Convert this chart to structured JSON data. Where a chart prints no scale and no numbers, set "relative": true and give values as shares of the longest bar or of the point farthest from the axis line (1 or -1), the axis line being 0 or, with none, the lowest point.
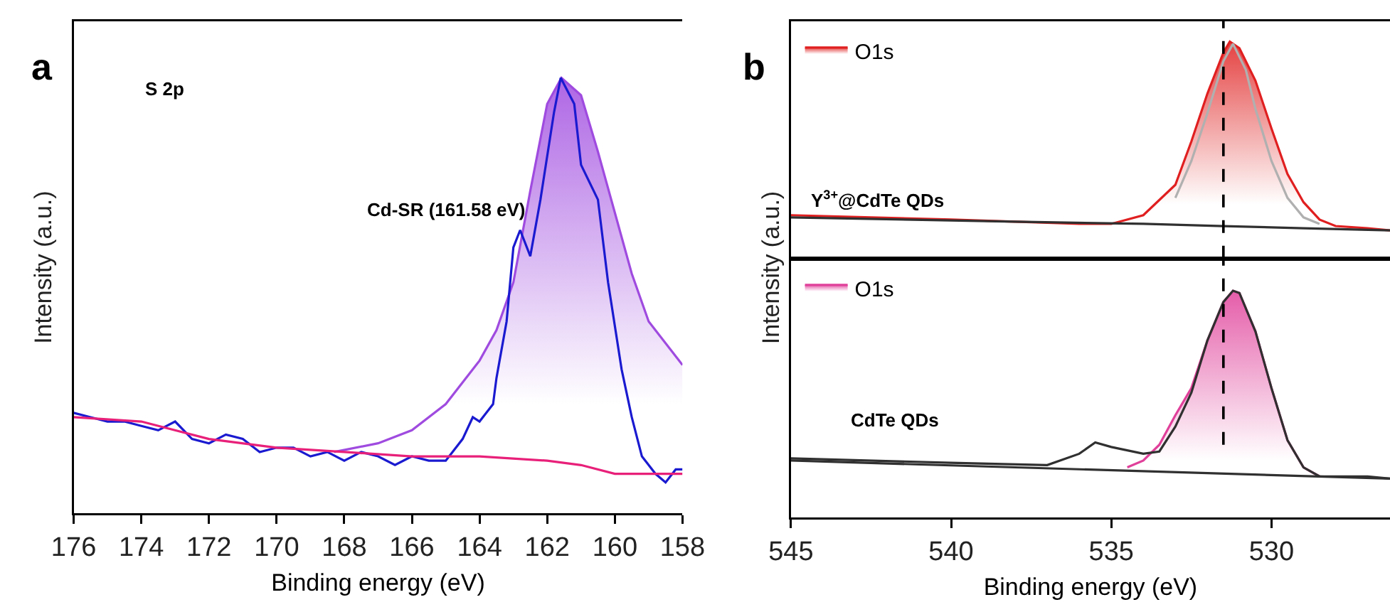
{
  "chart_data": [
    {
      "type": "line",
      "relative": true,
      "xlabel": "Binding energy (eV)",
      "ylabel": "Intensity (a.u.)",
      "xlim": [
        176,
        158
      ],
      "xticks": [
        176,
        174,
        172,
        170,
        168,
        166,
        164,
        162,
        160,
        158
      ],
      "annotations": [
        "a",
        "S 2p",
        "Cd-SR (161.58 eV)"
      ],
      "series": [
        {
          "color": "#1a1ad0",
          "x": [
            176,
            175.5,
            175,
            174.5,
            174,
            173.5,
            173,
            172.5,
            172,
            171.5,
            171,
            170.5,
            170,
            169.5,
            169,
            168.5,
            168,
            167.5,
            167,
            166.5,
            166,
            165.5,
            165,
            164.8,
            164.5,
            164.2,
            164,
            163.8,
            163.6,
            163.5,
            163.2,
            163,
            162.8,
            162.5,
            162.2,
            161.8,
            161.6,
            161.2,
            161,
            160.5,
            160.2,
            159.8,
            159.5,
            159.2,
            159,
            158.8,
            158.5,
            158.2,
            158
          ],
          "values": [
            0.23,
            0.22,
            0.21,
            0.21,
            0.2,
            0.19,
            0.21,
            0.17,
            0.16,
            0.18,
            0.17,
            0.14,
            0.15,
            0.15,
            0.13,
            0.14,
            0.12,
            0.14,
            0.13,
            0.11,
            0.13,
            0.12,
            0.12,
            0.14,
            0.17,
            0.22,
            0.21,
            0.23,
            0.25,
            0.31,
            0.44,
            0.61,
            0.65,
            0.59,
            0.72,
            0.92,
            1.0,
            0.94,
            0.8,
            0.72,
            0.53,
            0.33,
            0.22,
            0.13,
            0.11,
            0.09,
            0.07,
            0.1,
            0.1
          ]
        },
        {
          "type": "area",
          "color": "#a04be0",
          "x": [
            168.3,
            167,
            166,
            165,
            164,
            163.5,
            163,
            162.5,
            162,
            161.58,
            161,
            160.5,
            160,
            159.5,
            159,
            158
          ],
          "values": [
            0.14,
            0.16,
            0.19,
            0.25,
            0.35,
            0.42,
            0.53,
            0.74,
            0.94,
            1.0,
            0.96,
            0.83,
            0.69,
            0.55,
            0.44,
            0.34
          ]
        },
        {
          "color": "#e8207a",
          "x": [
            176,
            174,
            172,
            170,
            168,
            166,
            164,
            162,
            161,
            160,
            158
          ],
          "values": [
            0.22,
            0.21,
            0.17,
            0.15,
            0.14,
            0.13,
            0.13,
            0.12,
            0.11,
            0.09,
            0.09
          ]
        }
      ]
    },
    {
      "type": "line",
      "relative": true,
      "tick_labels": false,
      "legend": "top left",
      "xlim": [
        545,
        526.3
      ],
      "xticks": [
        545,
        540,
        535,
        530
      ],
      "annotations": [
        "b",
        "Y$^{3+}$@CdTe QDs"
      ],
      "ref_lines": [
        {
          "axis": "x",
          "value": 531.5,
          "line_style": "dashed",
          "color": "#000000"
        }
      ],
      "series": [
        {
          "type": "area",
          "name": "O1s",
          "color": "#e02020",
          "x": [
            545,
            540,
            536,
            535,
            534,
            533,
            532.5,
            532,
            531.5,
            531.3,
            531,
            530.5,
            530,
            529.5,
            529,
            528.5,
            528,
            527,
            526.3
          ],
          "values": [
            0.2,
            0.18,
            0.16,
            0.16,
            0.2,
            0.34,
            0.54,
            0.76,
            0.95,
            1.0,
            0.97,
            0.82,
            0.6,
            0.39,
            0.26,
            0.18,
            0.15,
            0.14,
            0.13
          ]
        },
        {
          "color": "#b0b0b0",
          "x": [
            533,
            532.5,
            532,
            531.5,
            531.2,
            530.8,
            530.5,
            530,
            529.5,
            529,
            528.5
          ],
          "values": [
            0.28,
            0.45,
            0.67,
            0.91,
            0.99,
            0.87,
            0.69,
            0.45,
            0.28,
            0.19,
            0.16
          ]
        },
        {
          "color": "#303030",
          "x": [
            545,
            538,
            534,
            531.5,
            529,
            526.3
          ],
          "values": [
            0.19,
            0.17,
            0.16,
            0.15,
            0.14,
            0.13
          ]
        }
      ]
    },
    {
      "type": "line",
      "relative": true,
      "legend": "top left",
      "xlabel": "Binding energy (eV)",
      "ylabel": "Intensity (a.u.)",
      "xlim": [
        545,
        526.3
      ],
      "xticks": [
        545,
        540,
        535,
        530
      ],
      "annotations": [
        "CdTe QDs"
      ],
      "ref_lines": [
        {
          "axis": "x",
          "value": 531.5,
          "line_style": "dashed",
          "color": "#000000"
        }
      ],
      "series": [
        {
          "color": "#303030",
          "x": [
            545,
            540,
            537,
            536,
            535.5,
            535,
            534,
            533.5,
            533,
            532.5,
            532,
            531.5,
            531.2,
            531,
            530.5,
            530,
            529.5,
            529,
            528.5,
            527,
            526.3
          ],
          "values": [
            0.26,
            0.24,
            0.23,
            0.28,
            0.33,
            0.31,
            0.28,
            0.29,
            0.4,
            0.55,
            0.78,
            0.95,
            1.0,
            0.99,
            0.82,
            0.57,
            0.34,
            0.22,
            0.18,
            0.18,
            0.17
          ]
        },
        {
          "type": "area",
          "name": "O1s",
          "color": "#e0409a",
          "x": [
            534.5,
            534,
            533.5,
            533,
            532.5,
            532,
            531.5,
            531.2,
            531,
            530.5,
            530,
            529.5,
            529,
            528.5
          ],
          "values": [
            0.22,
            0.25,
            0.32,
            0.45,
            0.57,
            0.78,
            0.95,
            1.0,
            0.99,
            0.82,
            0.57,
            0.34,
            0.22,
            0.18
          ]
        },
        {
          "color": "#303030",
          "x": [
            545,
            526.3
          ],
          "values": [
            0.25,
            0.17
          ]
        }
      ]
    }
  ]
}
